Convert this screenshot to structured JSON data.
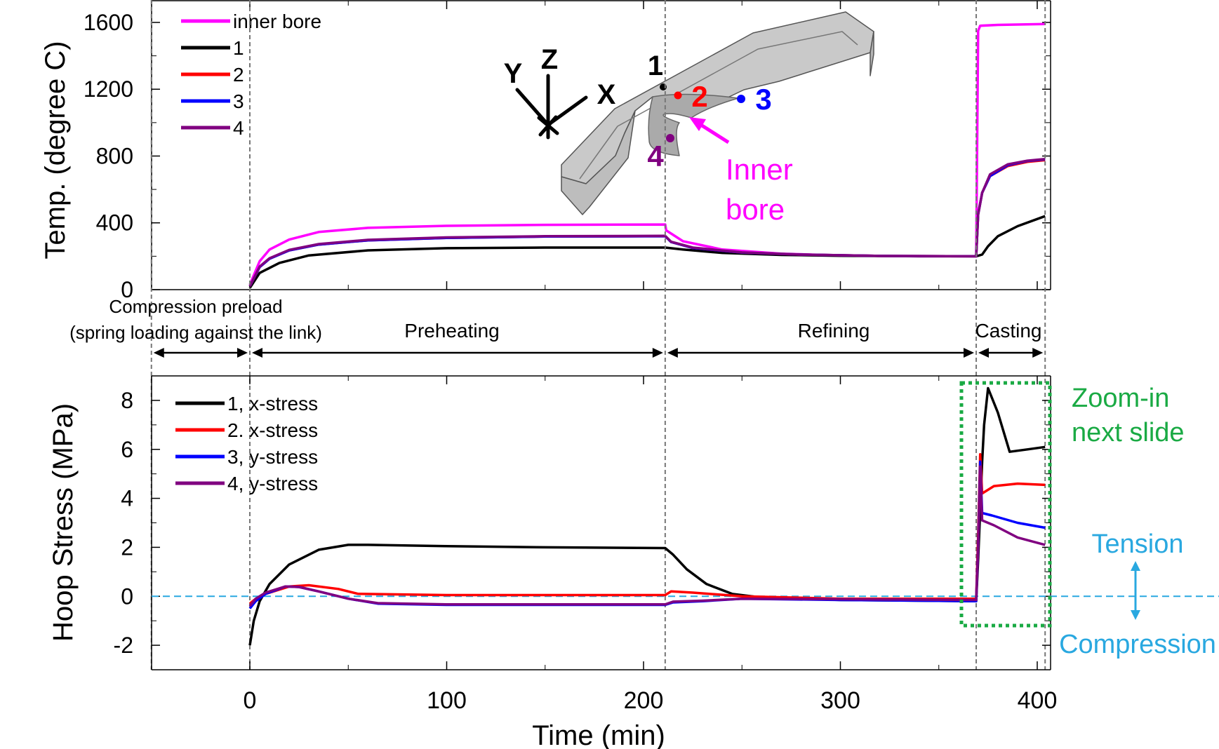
{
  "chart_data": [
    {
      "type": "line",
      "ylabel": "Temp. (degree C)",
      "xlim": [
        -50,
        404
      ],
      "ylim": [
        0,
        1730
      ],
      "yticks": [
        "0",
        "400",
        "800",
        "1200",
        "1600"
      ],
      "legend_position": "top-left",
      "series": [
        {
          "name": "inner bore",
          "color": "#ff00ff",
          "points": [
            [
              0,
              30
            ],
            [
              5,
              170
            ],
            [
              10,
              240
            ],
            [
              20,
              300
            ],
            [
              35,
              345
            ],
            [
              60,
              370
            ],
            [
              100,
              382
            ],
            [
              150,
              388
            ],
            [
              211,
              390
            ],
            [
              211.5,
              355
            ],
            [
              220,
              290
            ],
            [
              240,
              240
            ],
            [
              270,
              215
            ],
            [
              300,
              205
            ],
            [
              340,
              200
            ],
            [
              369,
              200
            ],
            [
              370,
              1550
            ],
            [
              371,
              1580
            ],
            [
              380,
              1585
            ],
            [
              404,
              1590
            ]
          ]
        },
        {
          "name": "1",
          "color": "#000000",
          "points": [
            [
              0,
              10
            ],
            [
              5,
              100
            ],
            [
              15,
              160
            ],
            [
              30,
              205
            ],
            [
              60,
              235
            ],
            [
              100,
              248
            ],
            [
              150,
              252
            ],
            [
              211,
              252
            ],
            [
              220,
              240
            ],
            [
              240,
              220
            ],
            [
              270,
              208
            ],
            [
              300,
              203
            ],
            [
              340,
              200
            ],
            [
              369,
              200
            ],
            [
              372,
              210
            ],
            [
              375,
              260
            ],
            [
              380,
              320
            ],
            [
              390,
              380
            ],
            [
              404,
              440
            ]
          ]
        },
        {
          "name": "2",
          "color": "#ff0000",
          "points": [
            [
              0,
              20
            ],
            [
              5,
              135
            ],
            [
              10,
              185
            ],
            [
              20,
              235
            ],
            [
              35,
              270
            ],
            [
              60,
              295
            ],
            [
              100,
              310
            ],
            [
              150,
              318
            ],
            [
              211,
              320
            ],
            [
              214,
              285
            ],
            [
              225,
              250
            ],
            [
              250,
              222
            ],
            [
              280,
              210
            ],
            [
              320,
              202
            ],
            [
              369,
              200
            ],
            [
              370,
              450
            ],
            [
              372,
              580
            ],
            [
              376,
              680
            ],
            [
              385,
              740
            ],
            [
              395,
              765
            ],
            [
              404,
              775
            ]
          ]
        },
        {
          "name": "3",
          "color": "#0000ff",
          "points": [
            [
              0,
              20
            ],
            [
              5,
              135
            ],
            [
              10,
              185
            ],
            [
              20,
              235
            ],
            [
              35,
              270
            ],
            [
              60,
              295
            ],
            [
              100,
              310
            ],
            [
              150,
              318
            ],
            [
              211,
              320
            ],
            [
              214,
              285
            ],
            [
              225,
              250
            ],
            [
              250,
              222
            ],
            [
              280,
              210
            ],
            [
              320,
              202
            ],
            [
              369,
              200
            ],
            [
              370,
              450
            ],
            [
              372,
              580
            ],
            [
              376,
              680
            ],
            [
              385,
              745
            ],
            [
              395,
              770
            ],
            [
              404,
              780
            ]
          ]
        },
        {
          "name": "4",
          "color": "#800080",
          "points": [
            [
              0,
              20
            ],
            [
              5,
              138
            ],
            [
              10,
              188
            ],
            [
              20,
              238
            ],
            [
              35,
              273
            ],
            [
              60,
              298
            ],
            [
              100,
              313
            ],
            [
              150,
              320
            ],
            [
              211,
              322
            ],
            [
              214,
              287
            ],
            [
              225,
              252
            ],
            [
              250,
              223
            ],
            [
              280,
              210
            ],
            [
              320,
              202
            ],
            [
              369,
              200
            ],
            [
              370,
              450
            ],
            [
              372,
              580
            ],
            [
              376,
              690
            ],
            [
              385,
              750
            ],
            [
              395,
              772
            ],
            [
              404,
              782
            ]
          ]
        }
      ]
    },
    {
      "type": "line",
      "xlabel": "Time (min)",
      "ylabel": "Hoop Stress (MPa)",
      "xlim": [
        -50,
        404
      ],
      "ylim": [
        -3,
        9
      ],
      "xticks": [
        "0",
        "100",
        "200",
        "300",
        "400"
      ],
      "yticks": [
        "-2",
        "0",
        "2",
        "4",
        "6",
        "8"
      ],
      "legend_position": "top-left",
      "series": [
        {
          "name": "1, x-stress",
          "color": "#000000",
          "points": [
            [
              0,
              -2
            ],
            [
              2,
              -1
            ],
            [
              5,
              -0.2
            ],
            [
              10,
              0.5
            ],
            [
              20,
              1.3
            ],
            [
              35,
              1.9
            ],
            [
              50,
              2.1
            ],
            [
              60,
              2.1
            ],
            [
              100,
              2.05
            ],
            [
              150,
              2.0
            ],
            [
              211,
              1.97
            ],
            [
              215,
              1.7
            ],
            [
              222,
              1.1
            ],
            [
              232,
              0.5
            ],
            [
              245,
              0.1
            ],
            [
              260,
              -0.05
            ],
            [
              300,
              -0.15
            ],
            [
              369,
              -0.2
            ],
            [
              370,
              1.5
            ],
            [
              371,
              3.5
            ],
            [
              372,
              5.5
            ],
            [
              373,
              7.0
            ],
            [
              375,
              8.5
            ],
            [
              380,
              7.5
            ],
            [
              386,
              5.9
            ],
            [
              395,
              6.0
            ],
            [
              404,
              6.1
            ]
          ]
        },
        {
          "name": "2. x-stress",
          "color": "#ff0000",
          "points": [
            [
              0,
              -0.3
            ],
            [
              3,
              -0.1
            ],
            [
              8,
              0.1
            ],
            [
              20,
              0.4
            ],
            [
              30,
              0.45
            ],
            [
              45,
              0.3
            ],
            [
              55,
              0.1
            ],
            [
              100,
              0.05
            ],
            [
              150,
              0.05
            ],
            [
              211,
              0.05
            ],
            [
              214,
              0.2
            ],
            [
              225,
              0.15
            ],
            [
              250,
              0
            ],
            [
              300,
              -0.1
            ],
            [
              369,
              -0.1
            ],
            [
              370,
              2.5
            ],
            [
              371,
              5.8
            ],
            [
              372,
              4.2
            ],
            [
              378,
              4.5
            ],
            [
              390,
              4.6
            ],
            [
              404,
              4.55
            ]
          ]
        },
        {
          "name": "3, y-stress",
          "color": "#0000ff",
          "points": [
            [
              0,
              -0.5
            ],
            [
              3,
              -0.2
            ],
            [
              8,
              0.1
            ],
            [
              18,
              0.4
            ],
            [
              25,
              0.38
            ],
            [
              35,
              0.2
            ],
            [
              50,
              -0.1
            ],
            [
              65,
              -0.3
            ],
            [
              100,
              -0.35
            ],
            [
              150,
              -0.35
            ],
            [
              211,
              -0.35
            ],
            [
              215,
              -0.25
            ],
            [
              230,
              -0.2
            ],
            [
              250,
              -0.1
            ],
            [
              300,
              -0.15
            ],
            [
              369,
              -0.2
            ],
            [
              370,
              2.0
            ],
            [
              371,
              5.5
            ],
            [
              372,
              3.4
            ],
            [
              377,
              3.3
            ],
            [
              390,
              3.0
            ],
            [
              404,
              2.8
            ]
          ]
        },
        {
          "name": "4, y-stress",
          "color": "#800080",
          "points": [
            [
              0,
              -0.4
            ],
            [
              3,
              -0.1
            ],
            [
              8,
              0.15
            ],
            [
              18,
              0.4
            ],
            [
              25,
              0.38
            ],
            [
              35,
              0.2
            ],
            [
              50,
              -0.1
            ],
            [
              65,
              -0.28
            ],
            [
              100,
              -0.33
            ],
            [
              150,
              -0.33
            ],
            [
              211,
              -0.33
            ],
            [
              215,
              -0.22
            ],
            [
              230,
              -0.18
            ],
            [
              250,
              -0.1
            ],
            [
              300,
              -0.12
            ],
            [
              369,
              -0.15
            ],
            [
              370,
              2.0
            ],
            [
              371,
              5.3
            ],
            [
              372,
              3.1
            ],
            [
              378,
              2.9
            ],
            [
              390,
              2.4
            ],
            [
              404,
              2.1
            ]
          ]
        }
      ],
      "reference_line": {
        "y": 0,
        "color": "#29a8e0",
        "style": "dashed"
      }
    }
  ],
  "phases": [
    {
      "label": "Compression preload",
      "label2": "(spring loading against the link)",
      "start": -50,
      "end": 0
    },
    {
      "label": "Preheating",
      "start": 0,
      "end": 211
    },
    {
      "label": "Refining",
      "start": 211,
      "end": 369
    },
    {
      "label": "Casting",
      "start": 369,
      "end": 404
    }
  ],
  "phase_boundaries": [
    -50,
    0,
    211,
    369,
    404
  ],
  "inset": {
    "axes": [
      "X",
      "Y",
      "Z"
    ],
    "points": [
      {
        "label": "1",
        "color": "#000000"
      },
      {
        "label": "2",
        "color": "#ff0000"
      },
      {
        "label": "3",
        "color": "#0000ff"
      },
      {
        "label": "4",
        "color": "#800080"
      }
    ],
    "inner_bore_label": [
      "Inner",
      "bore"
    ],
    "inner_bore_color": "#ff00ff",
    "body_color": "#cccccc"
  },
  "annotations": {
    "zoom": [
      "Zoom-in",
      "next slide"
    ],
    "zoom_color": "#1aaa44",
    "tension": "Tension",
    "compression": "Compression",
    "ref_color": "#29a8e0"
  }
}
